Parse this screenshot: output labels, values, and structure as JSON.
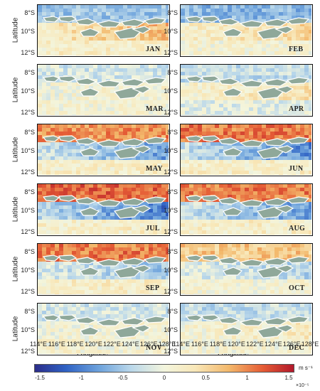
{
  "figure": {
    "y_label": "Latitude",
    "x_label": "Longitude",
    "lat_ticks": [
      "8°S",
      "10°S",
      "12°S"
    ],
    "lon_ticks": [
      "114°E",
      "116°E",
      "118°E",
      "120°E",
      "122°E",
      "124°E",
      "126°E",
      "128°E"
    ]
  },
  "panels": [
    {
      "label": "JAN",
      "north": -0.5,
      "mid": 0.6,
      "south": 0.2
    },
    {
      "label": "FEB",
      "north": -0.6,
      "mid": 0.4,
      "south": 0.1
    },
    {
      "label": "MAR",
      "north": -0.2,
      "mid": 0.1,
      "south": 0.1
    },
    {
      "label": "APR",
      "north": -0.3,
      "mid": 0.3,
      "south": -0.1
    },
    {
      "label": "MAY",
      "north": 0.9,
      "mid": -0.6,
      "south": 0.2
    },
    {
      "label": "JUN",
      "north": 1.0,
      "mid": -0.7,
      "south": 0.2
    },
    {
      "label": "JUL",
      "north": 1.1,
      "mid": -0.8,
      "south": 0.2
    },
    {
      "label": "AUG",
      "north": 1.0,
      "mid": -0.6,
      "south": 0.2
    },
    {
      "label": "SEP",
      "north": 1.0,
      "mid": -0.4,
      "south": 0.2
    },
    {
      "label": "OCT",
      "north": 0.6,
      "mid": -0.3,
      "south": 0.1
    },
    {
      "label": "NOV",
      "north": -0.2,
      "mid": 0.1,
      "south": 0.1
    },
    {
      "label": "DEC",
      "north": -0.3,
      "mid": 0.2,
      "south": 0.1
    }
  ],
  "colorbar": {
    "ticks": [
      "-1.5",
      "-1",
      "-0.5",
      "0",
      "0.5",
      "1",
      "1.5"
    ],
    "unit": "m s⁻¹",
    "scale": "×10⁻⁵",
    "range": [
      -1.5,
      1.5
    ],
    "colors": [
      "#2c2d8a",
      "#2f62c4",
      "#6ea3dc",
      "#b9d7ea",
      "#f3f5dd",
      "#f8e7b8",
      "#f3b86b",
      "#e55c35",
      "#b2182b"
    ]
  },
  "land_color": "#8fa89a"
}
